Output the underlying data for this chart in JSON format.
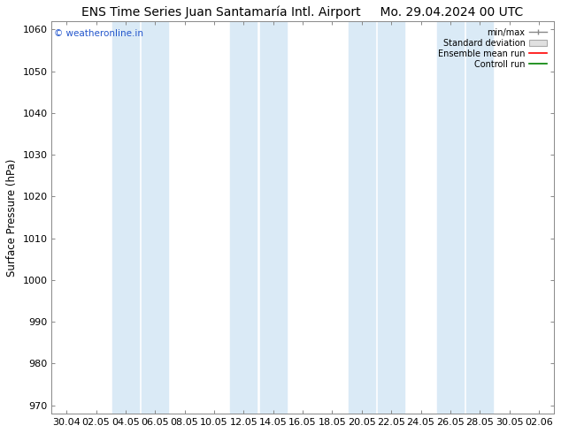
{
  "title_left": "ENS Time Series Juan Santamaría Intl. Airport",
  "title_right": "Mo. 29.04.2024 00 UTC",
  "ylabel": "Surface Pressure (hPa)",
  "ylim": [
    968,
    1062
  ],
  "yticks": [
    970,
    980,
    990,
    1000,
    1010,
    1020,
    1030,
    1040,
    1050,
    1060
  ],
  "watermark": "© weatheronline.in",
  "bg_color": "#ffffff",
  "plot_bg_color": "#ffffff",
  "band_color": "#daeaf6",
  "x_labels": [
    "30.04",
    "02.05",
    "04.05",
    "06.05",
    "08.05",
    "10.05",
    "12.05",
    "14.05",
    "16.05",
    "18.05",
    "20.05",
    "22.05",
    "24.05",
    "26.05",
    "28.05",
    "30.05",
    "02.06"
  ],
  "legend_entries": [
    "min/max",
    "Standard deviation",
    "Ensemble mean run",
    "Controll run"
  ],
  "legend_colors": [
    "#aaaaaa",
    "#cccccc",
    "#ff0000",
    "#008000"
  ],
  "title_fontsize": 10,
  "tick_fontsize": 8,
  "ylabel_fontsize": 8.5
}
